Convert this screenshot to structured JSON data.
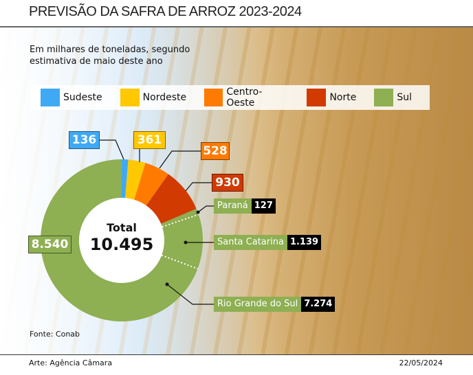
{
  "title": "PREVISÃO DA SAFRA DE ARROZ 2023-2024",
  "subtitle_line1": "Em milhares de toneladas, segundo",
  "subtitle_line2": "estimativa de maio deste ano",
  "source": "Fonte: Conab",
  "credit": "Arte: Agência Câmara",
  "date": "22/05/2024",
  "chart_data": {
    "type": "pie",
    "title": "PREVISÃO DA SAFRA DE ARROZ 2023-2024",
    "unit": "milhares de toneladas",
    "total_label": "Total",
    "total_value": "10.495",
    "legend_position": "top",
    "slices": [
      {
        "name": "Sudeste",
        "value": 136,
        "label": "136",
        "color": "#3fa9f5"
      },
      {
        "name": "Nordeste",
        "value": 361,
        "label": "361",
        "color": "#ffc800"
      },
      {
        "name": "Centro-Oeste",
        "value": 528,
        "label": "528",
        "color": "#ff7a00"
      },
      {
        "name": "Norte",
        "value": 930,
        "label": "930",
        "color": "#d13a00"
      },
      {
        "name": "Sul",
        "value": 8540,
        "label": "8.540",
        "color": "#8eaf52"
      }
    ],
    "sul_breakdown": [
      {
        "name": "Paraná",
        "value": 127,
        "label": "127"
      },
      {
        "name": "Santa Catarina",
        "value": 1139,
        "label": "1.139"
      },
      {
        "name": "Rio Grande do Sul",
        "value": 7274,
        "label": "7.274"
      }
    ]
  }
}
